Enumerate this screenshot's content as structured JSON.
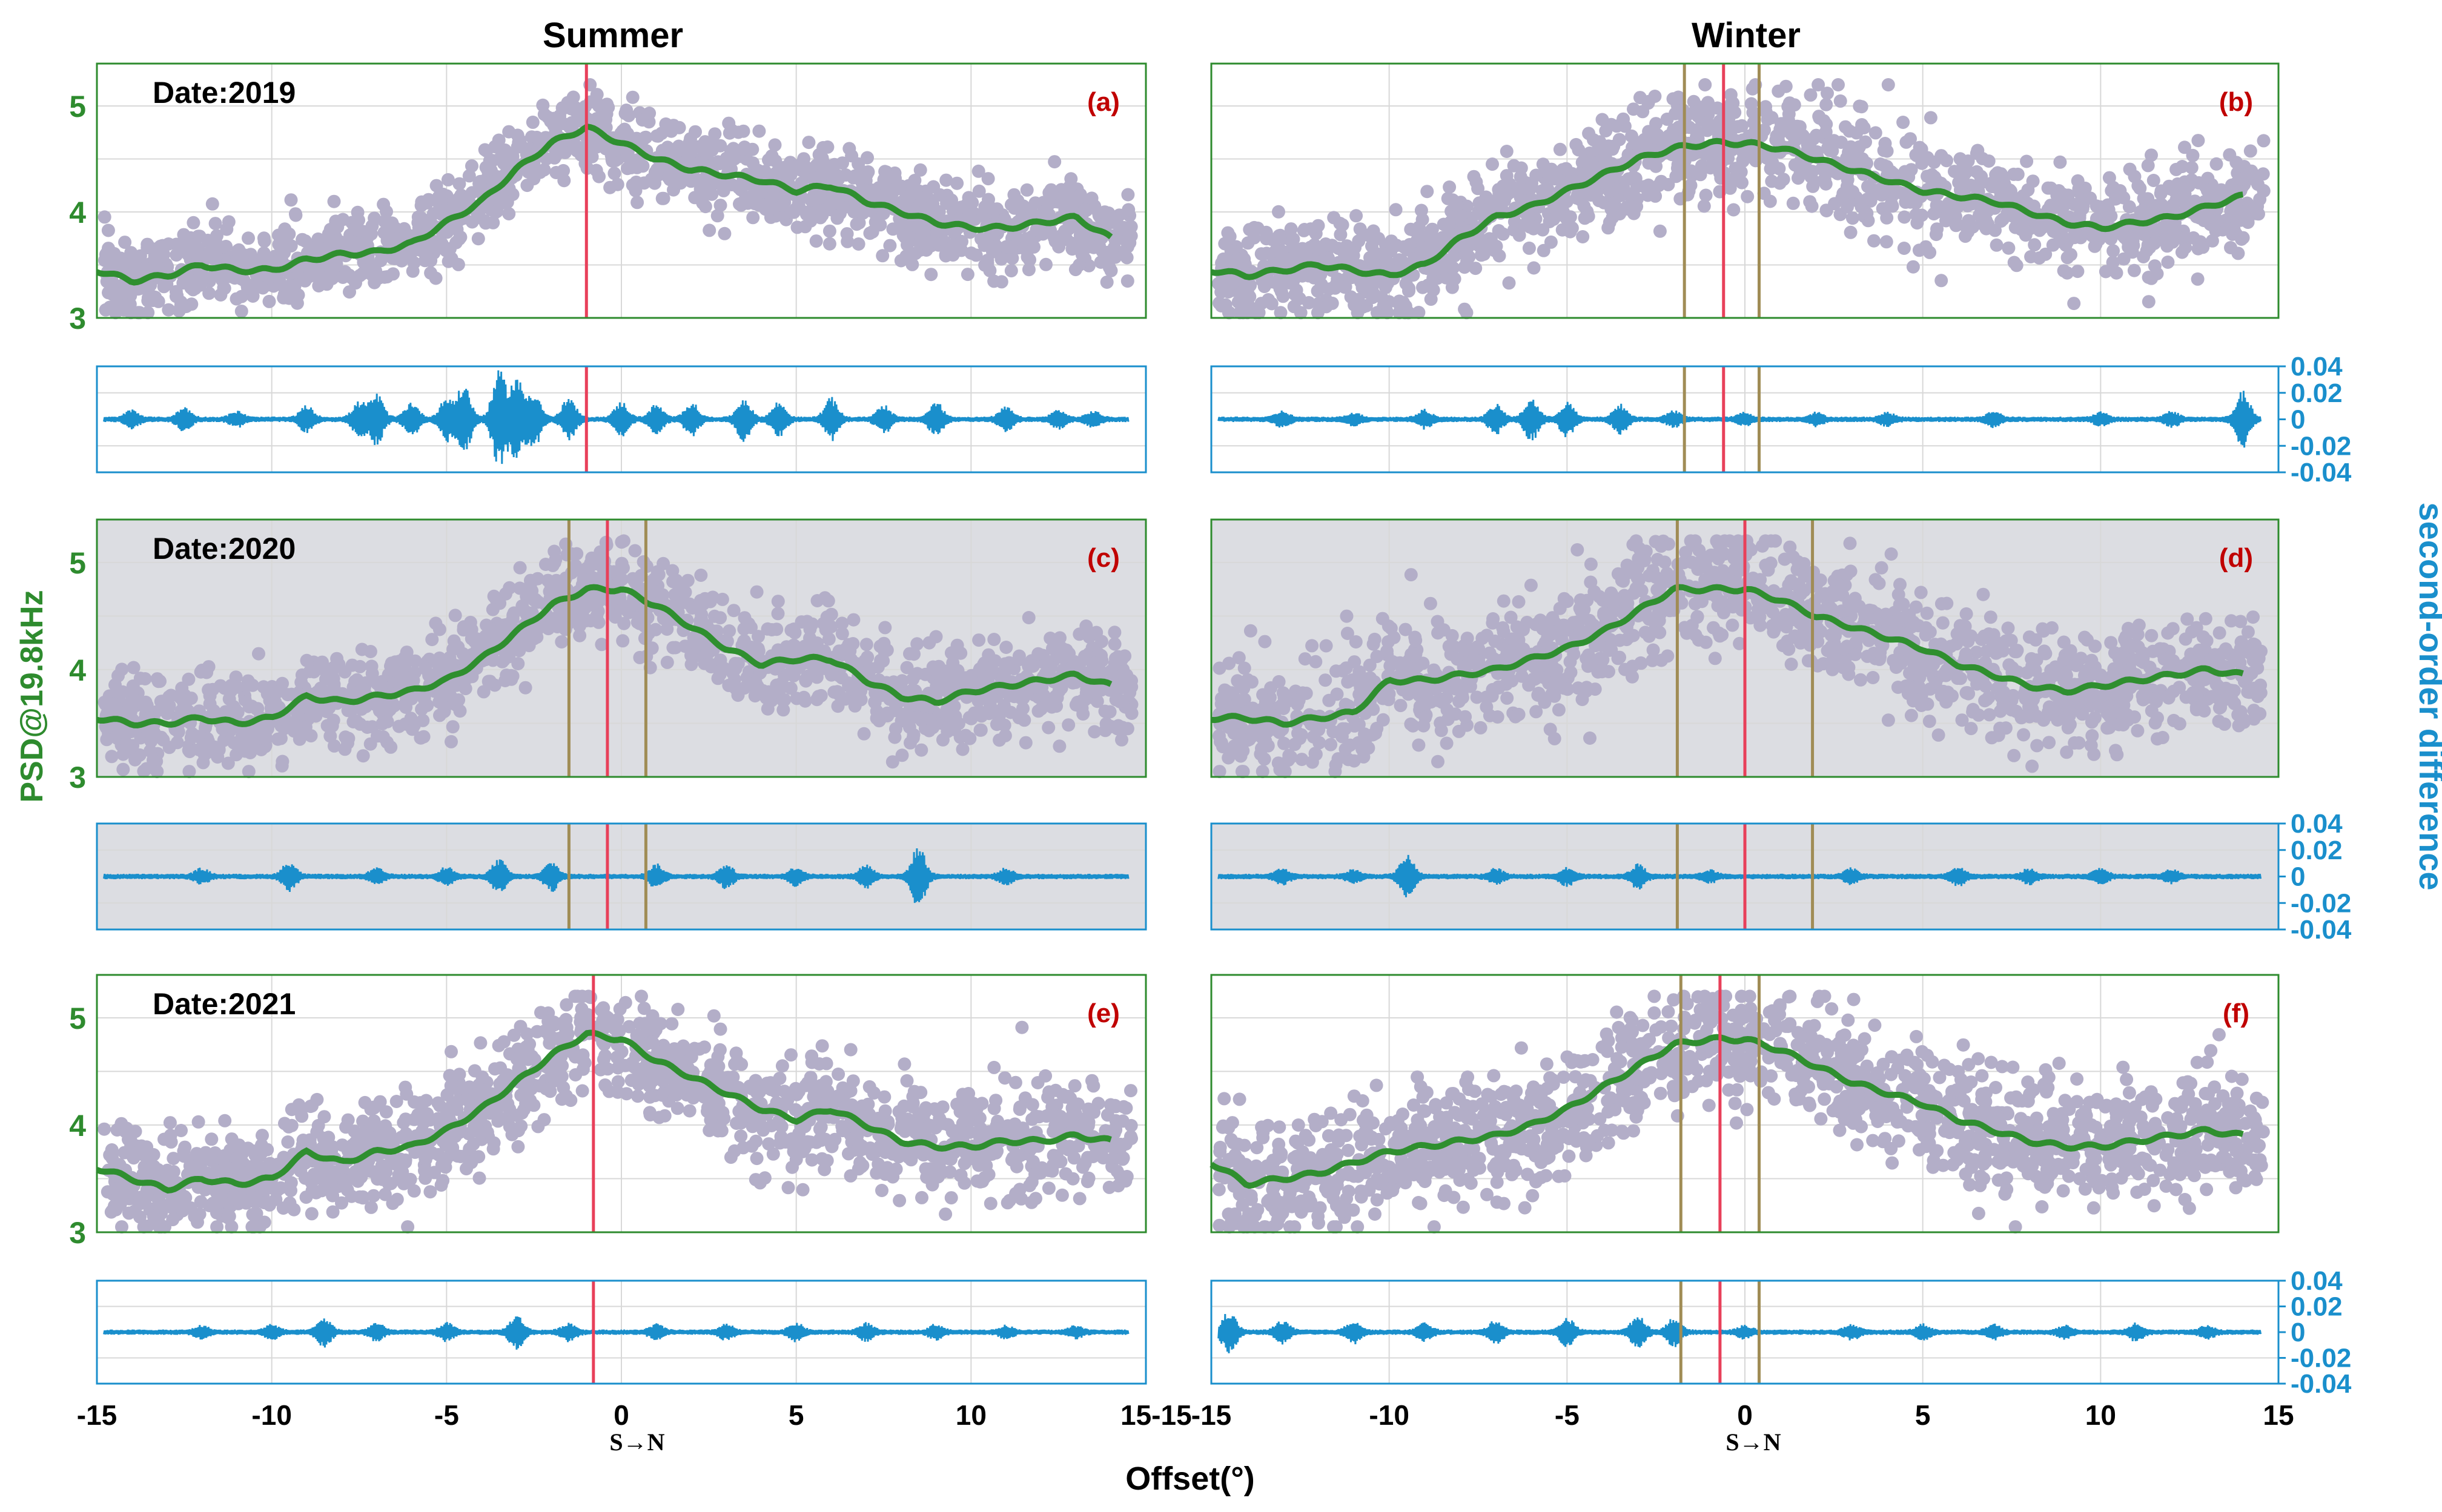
{
  "figure": {
    "column_titles": [
      "Summer",
      "Winter"
    ],
    "ylabel_left": "PSD@19.8kHz",
    "ylabel_right": "second-order difference",
    "xlabel": "Offset(°)",
    "direction_label": "S→N",
    "colors": {
      "scatter": "#b3aec8",
      "trend": "#2f8f2f",
      "diff": "#1a8fcc",
      "red_line": "#e8405a",
      "olive_line": "#a08c55",
      "left_axis": "#2e8b2e",
      "right_axis": "#1a8fcc",
      "panel_title": "#c00000",
      "shaded_bg": "#dcdde2"
    }
  },
  "chart_data": [
    {
      "panel": "(a)",
      "column": "Summer",
      "date_label": "Date:2019",
      "type": "scatter",
      "xlim": [
        -15,
        15
      ],
      "ylim": [
        3,
        5.4
      ],
      "yticks": [
        3,
        4,
        5
      ],
      "grid": true,
      "trend": {
        "x": [
          -15,
          -14,
          -13,
          -12,
          -11,
          -10,
          -9,
          -8,
          -7,
          -6,
          -5,
          -4,
          -3,
          -2,
          -1,
          0,
          1,
          2,
          3,
          4,
          5,
          6,
          7,
          8,
          9,
          10,
          11,
          12,
          13,
          14
        ],
        "y": [
          3.45,
          3.35,
          3.4,
          3.5,
          3.45,
          3.45,
          3.55,
          3.6,
          3.62,
          3.7,
          3.9,
          4.1,
          4.4,
          4.65,
          4.8,
          4.65,
          4.5,
          4.4,
          4.35,
          4.3,
          4.2,
          4.25,
          4.1,
          4.0,
          3.9,
          3.85,
          3.85,
          3.9,
          3.95,
          3.75
        ]
      },
      "scatter_spread": 0.35,
      "red_lines": [
        -1.0
      ],
      "olive_lines": [],
      "diff": {
        "ylim": [
          -0.04,
          0.04
        ],
        "bursts": [
          [
            -14,
            0.006
          ],
          [
            -12.5,
            0.008
          ],
          [
            -11,
            0.005
          ],
          [
            -9,
            0.009
          ],
          [
            -7.5,
            0.012
          ],
          [
            -7,
            0.018
          ],
          [
            -6,
            0.012
          ],
          [
            -5,
            0.015
          ],
          [
            -4.5,
            0.025
          ],
          [
            -3.5,
            0.035
          ],
          [
            -3,
            0.03
          ],
          [
            -2.5,
            0.02
          ],
          [
            -1.5,
            0.015
          ],
          [
            0,
            0.012
          ],
          [
            1,
            0.01
          ],
          [
            2,
            0.012
          ],
          [
            3.5,
            0.015
          ],
          [
            4.5,
            0.012
          ],
          [
            6,
            0.015
          ],
          [
            7.5,
            0.01
          ],
          [
            9,
            0.012
          ],
          [
            11,
            0.008
          ],
          [
            12.5,
            0.006
          ],
          [
            13.5,
            0.005
          ]
        ]
      }
    },
    {
      "panel": "(b)",
      "column": "Winter",
      "date_label": "",
      "type": "scatter",
      "xlim": [
        -15,
        15
      ],
      "ylim": [
        3,
        5.4
      ],
      "yticks": [
        3,
        4,
        5
      ],
      "grid": true,
      "trend": {
        "x": [
          -15,
          -14,
          -13,
          -12,
          -11,
          -10,
          -9,
          -8,
          -7,
          -6,
          -5,
          -4,
          -3,
          -2,
          -1,
          0,
          1,
          2,
          3,
          4,
          5,
          6,
          7,
          8,
          9,
          10,
          11,
          12,
          13,
          14
        ],
        "y": [
          3.45,
          3.4,
          3.45,
          3.5,
          3.45,
          3.4,
          3.5,
          3.75,
          3.95,
          4.05,
          4.2,
          4.35,
          4.5,
          4.6,
          4.65,
          4.65,
          4.6,
          4.5,
          4.4,
          4.3,
          4.2,
          4.15,
          4.1,
          4.0,
          3.9,
          3.85,
          3.9,
          3.95,
          4.05,
          4.15
        ]
      },
      "scatter_spread": 0.45,
      "red_lines": [
        -0.6
      ],
      "olive_lines": [
        -1.7,
        0.4
      ],
      "diff": {
        "ylim": [
          -0.04,
          0.04
        ],
        "bursts": [
          [
            -13,
            0.005
          ],
          [
            -11,
            0.004
          ],
          [
            -9,
            0.006
          ],
          [
            -7,
            0.01
          ],
          [
            -6,
            0.015
          ],
          [
            -5,
            0.012
          ],
          [
            -3.5,
            0.01
          ],
          [
            -2,
            0.005
          ],
          [
            0,
            0.004
          ],
          [
            2,
            0.004
          ],
          [
            4,
            0.004
          ],
          [
            7,
            0.005
          ],
          [
            10,
            0.004
          ],
          [
            12,
            0.005
          ],
          [
            14,
            0.02
          ]
        ]
      }
    },
    {
      "panel": "(c)",
      "column": "Summer",
      "date_label": "Date:2020",
      "type": "scatter",
      "xlim": [
        -15,
        15
      ],
      "ylim": [
        3,
        5.4
      ],
      "yticks": [
        3,
        4,
        5
      ],
      "grid": true,
      "shaded": true,
      "trend": {
        "x": [
          -15,
          -14,
          -13,
          -12,
          -11,
          -10,
          -9,
          -8,
          -7,
          -6,
          -5,
          -4,
          -3,
          -2,
          -1,
          0,
          1,
          2,
          3,
          4,
          5,
          6,
          7,
          8,
          9,
          10,
          11,
          12,
          13,
          14
        ],
        "y": [
          3.55,
          3.5,
          3.5,
          3.55,
          3.5,
          3.55,
          3.75,
          3.7,
          3.75,
          3.8,
          3.9,
          4.1,
          4.35,
          4.6,
          4.75,
          4.75,
          4.6,
          4.4,
          4.2,
          4.05,
          4.1,
          4.1,
          3.9,
          3.75,
          3.7,
          3.8,
          3.85,
          3.9,
          3.95,
          3.85
        ]
      },
      "scatter_spread": 0.4,
      "red_lines": [
        -0.4
      ],
      "olive_lines": [
        -1.5,
        0.7
      ],
      "diff": {
        "ylim": [
          -0.04,
          0.04
        ],
        "bursts": [
          [
            -12,
            0.005
          ],
          [
            -9.5,
            0.01
          ],
          [
            -7,
            0.005
          ],
          [
            -5,
            0.006
          ],
          [
            -3.5,
            0.012
          ],
          [
            -2,
            0.01
          ],
          [
            1,
            0.008
          ],
          [
            3,
            0.008
          ],
          [
            5,
            0.006
          ],
          [
            7,
            0.008
          ],
          [
            8.5,
            0.022
          ],
          [
            11,
            0.005
          ]
        ]
      }
    },
    {
      "panel": "(d)",
      "column": "Winter",
      "date_label": "",
      "type": "scatter",
      "xlim": [
        -15,
        15
      ],
      "ylim": [
        3,
        5.4
      ],
      "yticks": [
        3,
        4,
        5
      ],
      "grid": true,
      "shaded": true,
      "trend": {
        "x": [
          -15,
          -14,
          -13,
          -12,
          -11,
          -10,
          -9,
          -8,
          -7,
          -6,
          -5,
          -4,
          -3,
          -2,
          -1,
          0,
          1,
          2,
          3,
          4,
          5,
          6,
          7,
          8,
          9,
          10,
          11,
          12,
          13,
          14
        ],
        "y": [
          3.55,
          3.55,
          3.5,
          3.55,
          3.6,
          3.9,
          3.9,
          3.95,
          4.0,
          4.1,
          4.2,
          4.35,
          4.55,
          4.75,
          4.75,
          4.75,
          4.65,
          4.5,
          4.4,
          4.3,
          4.2,
          4.05,
          3.95,
          3.85,
          3.8,
          3.85,
          3.9,
          3.95,
          4.0,
          3.95
        ]
      },
      "scatter_spread": 0.5,
      "red_lines": [
        0.0
      ],
      "olive_lines": [
        -1.9,
        1.9
      ],
      "diff": {
        "ylim": [
          -0.04,
          0.04
        ],
        "bursts": [
          [
            -13,
            0.005
          ],
          [
            -11,
            0.004
          ],
          [
            -9.5,
            0.015
          ],
          [
            -7,
            0.005
          ],
          [
            -5,
            0.006
          ],
          [
            -3,
            0.008
          ],
          [
            -1,
            0.004
          ],
          [
            3,
            0.005
          ],
          [
            6,
            0.006
          ],
          [
            8,
            0.005
          ],
          [
            10,
            0.005
          ],
          [
            12,
            0.004
          ]
        ]
      }
    },
    {
      "panel": "(e)",
      "column": "Summer",
      "date_label": "Date:2021",
      "type": "scatter",
      "xlim": [
        -15,
        15
      ],
      "ylim": [
        3,
        5.4
      ],
      "yticks": [
        3,
        4,
        5
      ],
      "grid": true,
      "trend": {
        "x": [
          -15,
          -14,
          -13,
          -12,
          -11,
          -10,
          -9,
          -8,
          -7,
          -6,
          -5,
          -4,
          -3,
          -2,
          -1,
          0,
          1,
          2,
          3,
          4,
          5,
          6,
          7,
          8,
          9,
          10,
          11,
          12,
          13,
          14
        ],
        "y": [
          3.6,
          3.5,
          3.4,
          3.5,
          3.45,
          3.5,
          3.75,
          3.65,
          3.75,
          3.8,
          3.95,
          4.15,
          4.4,
          4.65,
          4.85,
          4.8,
          4.6,
          4.45,
          4.3,
          4.15,
          4.05,
          4.15,
          4.0,
          3.85,
          3.8,
          3.8,
          3.85,
          3.85,
          3.9,
          3.85
        ]
      },
      "scatter_spread": 0.45,
      "red_lines": [
        -0.8
      ],
      "olive_lines": [],
      "diff": {
        "ylim": [
          -0.04,
          0.04
        ],
        "bursts": [
          [
            -12,
            0.004
          ],
          [
            -10,
            0.005
          ],
          [
            -8.5,
            0.01
          ],
          [
            -7,
            0.006
          ],
          [
            -5,
            0.006
          ],
          [
            -3,
            0.012
          ],
          [
            -1.5,
            0.006
          ],
          [
            1,
            0.005
          ],
          [
            3,
            0.005
          ],
          [
            5,
            0.006
          ],
          [
            7,
            0.006
          ],
          [
            9,
            0.005
          ],
          [
            11,
            0.004
          ],
          [
            13,
            0.004
          ]
        ]
      }
    },
    {
      "panel": "(f)",
      "column": "Winter",
      "date_label": "",
      "type": "scatter",
      "xlim": [
        -15,
        15
      ],
      "ylim": [
        3,
        5.4
      ],
      "yticks": [
        3,
        4,
        5
      ],
      "grid": true,
      "trend": {
        "x": [
          -15,
          -14,
          -13,
          -12,
          -11,
          -10,
          -9,
          -8,
          -7,
          -6,
          -5,
          -4,
          -3,
          -2,
          -1,
          0,
          1,
          2,
          3,
          4,
          5,
          6,
          7,
          8,
          9,
          10,
          11,
          12,
          13,
          14
        ],
        "y": [
          3.65,
          3.45,
          3.5,
          3.55,
          3.65,
          3.75,
          3.8,
          3.85,
          3.9,
          4.0,
          4.15,
          4.35,
          4.55,
          4.75,
          4.8,
          4.8,
          4.7,
          4.55,
          4.4,
          4.3,
          4.2,
          4.05,
          3.95,
          3.85,
          3.8,
          3.8,
          3.85,
          3.9,
          3.95,
          3.9
        ]
      },
      "scatter_spread": 0.5,
      "red_lines": [
        -0.7
      ],
      "olive_lines": [
        -1.8,
        0.4
      ],
      "diff": {
        "ylim": [
          -0.04,
          0.04
        ],
        "bursts": [
          [
            -14.5,
            0.015
          ],
          [
            -13,
            0.008
          ],
          [
            -11,
            0.008
          ],
          [
            -9,
            0.006
          ],
          [
            -7,
            0.008
          ],
          [
            -5,
            0.01
          ],
          [
            -3,
            0.012
          ],
          [
            -2,
            0.01
          ],
          [
            0,
            0.004
          ],
          [
            3,
            0.005
          ],
          [
            5,
            0.005
          ],
          [
            7,
            0.005
          ],
          [
            9,
            0.004
          ],
          [
            11,
            0.006
          ],
          [
            13,
            0.004
          ]
        ]
      }
    }
  ],
  "axes_text": {
    "left_yticks": [
      "3",
      "4",
      "5"
    ],
    "diff_yticks": [
      "0.04",
      "0.02",
      "0",
      "-0.02",
      "-0.04"
    ],
    "xticks": [
      "-15",
      "-10",
      "-5",
      "0",
      "5",
      "10",
      "15"
    ],
    "xticks_left": [
      "-15",
      "-10",
      "-5",
      "0",
      "5",
      "10",
      "15-15"
    ]
  }
}
